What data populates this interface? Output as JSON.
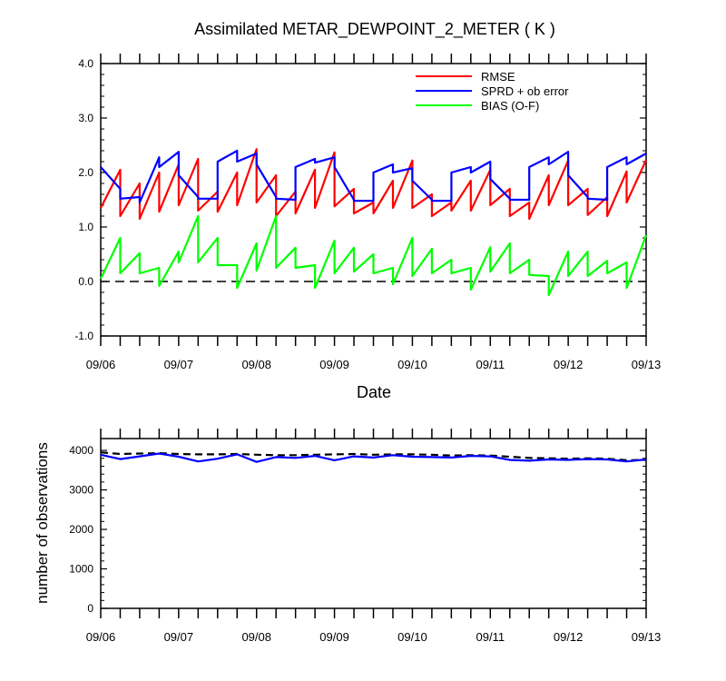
{
  "chart_data": [
    {
      "type": "line",
      "title": "Assimilated METAR_DEWPOINT_2_METER ( K )",
      "xlabel": "Date",
      "ylabel": "",
      "x_tick_labels": [
        "09/06",
        "09/07",
        "09/08",
        "09/09",
        "09/10",
        "09/11",
        "09/12",
        "09/13"
      ],
      "x_range_days": [
        0,
        7
      ],
      "ylim": [
        -1.0,
        4.0
      ],
      "y_ticks": [
        -1.0,
        0.0,
        1.0,
        2.0,
        3.0,
        4.0
      ],
      "y_tick_labels": [
        "-1.0",
        "0.0",
        "1.0",
        "2.0",
        "3.0",
        "4.0"
      ],
      "legend_position": "top-right",
      "reference_line": {
        "y": 0,
        "style": "dashed",
        "color": "#000000"
      },
      "series": [
        {
          "name": "RMSE",
          "color": "#ff0000",
          "x": [
            0.0,
            0.25,
            0.25,
            0.5,
            0.5,
            0.75,
            0.75,
            1.0,
            1.0,
            1.25,
            1.25,
            1.5,
            1.5,
            1.75,
            1.75,
            2.0,
            2.0,
            2.25,
            2.25,
            2.5,
            2.5,
            2.75,
            2.75,
            3.0,
            3.0,
            3.25,
            3.25,
            3.5,
            3.5,
            3.75,
            3.75,
            4.0,
            4.0,
            4.25,
            4.25,
            4.5,
            4.5,
            4.75,
            4.75,
            5.0,
            5.0,
            5.25,
            5.25,
            5.5,
            5.5,
            5.75,
            5.75,
            6.0,
            6.0,
            6.25,
            6.25,
            6.5,
            6.5,
            6.75,
            6.75,
            7.0
          ],
          "y": [
            1.35,
            2.05,
            1.2,
            1.8,
            1.15,
            2.0,
            1.28,
            2.15,
            1.4,
            2.25,
            1.3,
            1.65,
            1.28,
            2.0,
            1.4,
            2.43,
            1.45,
            1.95,
            1.2,
            1.65,
            1.25,
            2.05,
            1.35,
            2.37,
            1.38,
            1.7,
            1.25,
            1.45,
            1.25,
            1.85,
            1.35,
            2.22,
            1.35,
            1.6,
            1.2,
            1.45,
            1.3,
            1.85,
            1.3,
            2.05,
            1.4,
            1.7,
            1.2,
            1.45,
            1.15,
            1.95,
            1.4,
            2.22,
            1.4,
            1.7,
            1.22,
            1.55,
            1.2,
            2.02,
            1.45,
            2.23
          ]
        },
        {
          "name": "SPRD + ob error",
          "color": "#0000ff",
          "x": [
            0.0,
            0.25,
            0.25,
            0.5,
            0.5,
            0.75,
            0.75,
            1.0,
            1.0,
            1.25,
            1.25,
            1.5,
            1.5,
            1.75,
            1.75,
            2.0,
            2.0,
            2.25,
            2.25,
            2.5,
            2.5,
            2.75,
            2.75,
            3.0,
            3.0,
            3.25,
            3.25,
            3.5,
            3.5,
            3.75,
            3.75,
            4.0,
            4.0,
            4.25,
            4.25,
            4.5,
            4.5,
            4.75,
            4.75,
            5.0,
            5.0,
            5.25,
            5.25,
            5.5,
            5.5,
            5.75,
            5.75,
            6.0,
            6.0,
            6.25,
            6.25,
            6.5,
            6.5,
            6.75,
            6.75,
            7.0
          ],
          "y": [
            2.1,
            1.7,
            1.52,
            1.55,
            1.45,
            2.28,
            2.1,
            2.38,
            1.95,
            1.55,
            1.52,
            1.52,
            2.2,
            2.4,
            2.2,
            2.35,
            2.15,
            1.55,
            1.52,
            1.5,
            2.1,
            2.25,
            2.18,
            2.28,
            2.1,
            1.5,
            1.48,
            1.48,
            2.0,
            2.15,
            2.0,
            2.08,
            1.85,
            1.5,
            1.48,
            1.48,
            2.0,
            2.1,
            2.0,
            2.2,
            1.88,
            1.52,
            1.5,
            1.5,
            2.1,
            2.28,
            2.15,
            2.38,
            1.95,
            1.55,
            1.52,
            1.5,
            2.1,
            2.28,
            2.15,
            2.35
          ]
        },
        {
          "name": "BIAS (O-F)",
          "color": "#00ff00",
          "x": [
            0.0,
            0.25,
            0.25,
            0.5,
            0.5,
            0.75,
            0.75,
            1.0,
            1.0,
            1.25,
            1.25,
            1.5,
            1.5,
            1.75,
            1.75,
            2.0,
            2.0,
            2.25,
            2.25,
            2.5,
            2.5,
            2.75,
            2.75,
            3.0,
            3.0,
            3.25,
            3.25,
            3.5,
            3.5,
            3.75,
            3.75,
            4.0,
            4.0,
            4.25,
            4.25,
            4.5,
            4.5,
            4.75,
            4.75,
            5.0,
            5.0,
            5.25,
            5.25,
            5.5,
            5.5,
            5.75,
            5.75,
            6.0,
            6.0,
            6.25,
            6.25,
            6.5,
            6.5,
            6.75,
            6.75,
            7.0
          ],
          "y": [
            0.05,
            0.8,
            0.15,
            0.52,
            0.15,
            0.25,
            -0.08,
            0.55,
            0.35,
            1.2,
            0.35,
            0.8,
            0.3,
            0.3,
            -0.12,
            0.7,
            0.2,
            1.2,
            0.25,
            0.62,
            0.25,
            0.3,
            -0.12,
            0.75,
            0.15,
            0.62,
            0.18,
            0.5,
            0.15,
            0.25,
            -0.05,
            0.8,
            0.1,
            0.6,
            0.15,
            0.4,
            0.15,
            0.25,
            -0.15,
            0.63,
            0.18,
            0.7,
            0.15,
            0.4,
            0.12,
            0.1,
            -0.25,
            0.55,
            0.1,
            0.55,
            0.1,
            0.38,
            0.15,
            0.35,
            -0.12,
            0.85
          ]
        }
      ]
    },
    {
      "type": "line",
      "title": "",
      "xlabel": "",
      "ylabel": "number of observations",
      "x_tick_labels": [
        "09/06",
        "09/07",
        "09/08",
        "09/09",
        "09/10",
        "09/11",
        "09/12",
        "09/13"
      ],
      "x_range_days": [
        0,
        7
      ],
      "ylim": [
        0,
        4300
      ],
      "y_ticks": [
        0,
        1000,
        2000,
        3000,
        4000
      ],
      "y_tick_labels": [
        "0",
        "1000",
        "2000",
        "3000",
        "4000"
      ],
      "series": [
        {
          "name": "",
          "color": "#000000",
          "dashed": true,
          "x": [
            0,
            0.25,
            0.5,
            0.75,
            1.0,
            1.25,
            1.5,
            1.75,
            2.0,
            2.25,
            2.5,
            2.75,
            3.0,
            3.25,
            3.5,
            3.75,
            4.0,
            4.25,
            4.5,
            4.75,
            5.0,
            5.25,
            5.5,
            5.75,
            6.0,
            6.25,
            6.5,
            6.75,
            7.0
          ],
          "y": [
            3950,
            3910,
            3920,
            3930,
            3910,
            3900,
            3900,
            3910,
            3890,
            3880,
            3880,
            3890,
            3900,
            3910,
            3890,
            3900,
            3900,
            3890,
            3870,
            3880,
            3870,
            3840,
            3810,
            3800,
            3790,
            3800,
            3790,
            3750,
            3760
          ]
        },
        {
          "name": "",
          "color": "#0000ff",
          "dashed": false,
          "x": [
            0,
            0.25,
            0.5,
            0.75,
            1.0,
            1.25,
            1.5,
            1.75,
            2.0,
            2.25,
            2.5,
            2.75,
            3.0,
            3.25,
            3.5,
            3.75,
            4.0,
            4.25,
            4.5,
            4.75,
            5.0,
            5.25,
            5.5,
            5.75,
            6.0,
            6.25,
            6.5,
            6.75,
            7.0
          ],
          "y": [
            3890,
            3780,
            3850,
            3920,
            3840,
            3720,
            3790,
            3900,
            3710,
            3830,
            3810,
            3860,
            3750,
            3850,
            3820,
            3880,
            3840,
            3830,
            3820,
            3860,
            3850,
            3760,
            3740,
            3770,
            3760,
            3780,
            3770,
            3720,
            3770
          ]
        }
      ]
    }
  ]
}
